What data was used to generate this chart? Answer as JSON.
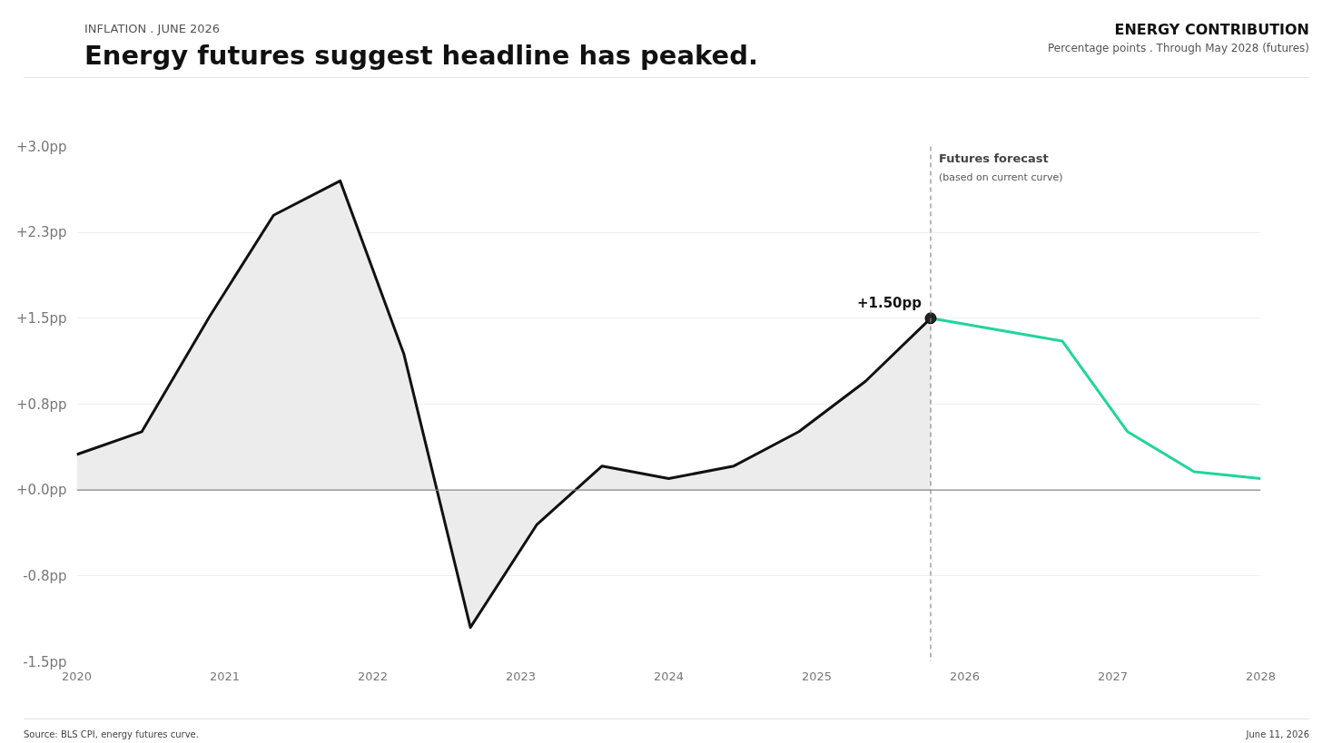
{
  "chart_data": {
    "type": "area",
    "title": "Energy futures suggest headline has peaked.",
    "x": [
      2020.0,
      2020.44,
      2020.9,
      2021.33,
      2021.78,
      2022.21,
      2022.66,
      2023.11,
      2023.55,
      2024.0,
      2024.44,
      2024.88,
      2025.33,
      2025.77
    ],
    "series": [
      {
        "color": "#111111",
        "values": [
          0.31,
          0.51,
          1.52,
          2.4,
          2.7,
          1.19,
          -1.2,
          -0.3,
          0.21,
          0.1,
          0.21,
          0.51,
          0.95,
          1.5
        ]
      },
      {
        "type": "line",
        "color": "#22d49a",
        "x": [
          2025.77,
          2026.66,
          2027.1,
          2027.55,
          2028.0
        ],
        "values": [
          1.5,
          1.3,
          0.51,
          0.16,
          0.1
        ]
      },
      {
        "type": "scatter",
        "color": "#222222",
        "x": [
          2025.77
        ],
        "values": [
          1.5
        ]
      }
    ],
    "xlim": [
      2020,
      2028
    ],
    "xticks": [
      2020,
      2021,
      2022,
      2023,
      2024,
      2025,
      2026,
      2027,
      2028
    ],
    "ylim": [
      -1.5,
      3.0
    ],
    "yticks": [
      {
        "value": -1.5,
        "label": "-1.5pp"
      },
      {
        "value": -0.75,
        "label": "-0.8pp"
      },
      {
        "value": 0,
        "label": "+0.0pp"
      },
      {
        "value": 0.75,
        "label": "+0.8pp"
      },
      {
        "value": 1.5,
        "label": "+1.5pp"
      },
      {
        "value": 2.25,
        "label": "+2.3pp"
      },
      {
        "value": 3.0,
        "label": "+3.0pp"
      }
    ],
    "grid": "y",
    "ref_lines": [
      {
        "axis": "x",
        "value": 2025.77,
        "label": "Futures forecast",
        "color": "#888888",
        "line_style": "dashed"
      },
      {
        "axis": "y",
        "value": 0,
        "color": "#888888"
      }
    ],
    "annotations": [
      "INFLATION   .   JUNE 2026",
      "ENERGY CONTRIBUTION",
      "Percentage points   .   Through May 2028 (futures)",
      "Source: BLS CPI, energy futures curve.",
      "June 11, 2026",
      {
        "text": "+1.50pp",
        "x": 2025.77,
        "y": 1.5
      },
      {
        "text": "(based on current curve)",
        "x": 2025.77,
        "y": 3.0
      }
    ]
  }
}
